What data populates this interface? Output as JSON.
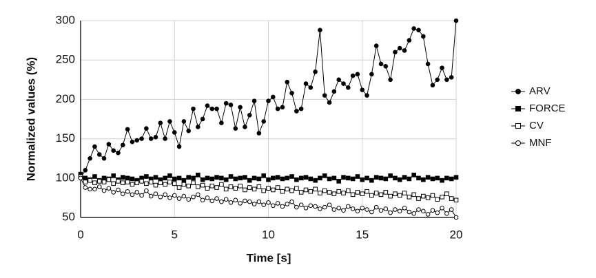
{
  "chart_data": {
    "type": "line",
    "xlabel": "Time [s]",
    "ylabel": "Normalized values (%)",
    "x": [
      0,
      0.25,
      0.5,
      0.75,
      1,
      1.25,
      1.5,
      1.75,
      2,
      2.25,
      2.5,
      2.75,
      3,
      3.25,
      3.5,
      3.75,
      4,
      4.25,
      4.5,
      4.75,
      5,
      5.25,
      5.5,
      5.75,
      6,
      6.25,
      6.5,
      6.75,
      7,
      7.25,
      7.5,
      7.75,
      8,
      8.25,
      8.5,
      8.75,
      9,
      9.25,
      9.5,
      9.75,
      10,
      10.25,
      10.5,
      10.75,
      11,
      11.25,
      11.5,
      11.75,
      12,
      12.25,
      12.5,
      12.75,
      13,
      13.25,
      13.5,
      13.75,
      14,
      14.25,
      14.5,
      14.75,
      15,
      15.25,
      15.5,
      15.75,
      16,
      16.25,
      16.5,
      16.75,
      17,
      17.25,
      17.5,
      17.75,
      18,
      18.25,
      18.5,
      18.75,
      19,
      19.25,
      19.5,
      19.75,
      20
    ],
    "series": [
      {
        "name": "ARV",
        "color": "#000000",
        "marker": "filled-circle",
        "values": [
          100,
          110,
          125,
          140,
          130,
          125,
          143,
          135,
          132,
          142,
          162,
          146,
          148,
          150,
          163,
          150,
          152,
          170,
          150,
          172,
          158,
          140,
          172,
          160,
          188,
          165,
          175,
          192,
          188,
          188,
          170,
          195,
          193,
          163,
          190,
          165,
          180,
          198,
          157,
          172,
          198,
          203,
          188,
          190,
          222,
          208,
          185,
          188,
          220,
          215,
          235,
          288,
          205,
          196,
          210,
          225,
          220,
          215,
          230,
          232,
          212,
          205,
          232,
          268,
          245,
          242,
          225,
          260,
          265,
          262,
          275,
          290,
          288,
          280,
          245,
          218,
          225,
          240,
          225,
          228,
          300
        ]
      },
      {
        "name": "FORCE",
        "color": "#000000",
        "marker": "filled-square",
        "values": [
          105,
          100,
          98,
          102,
          97,
          100,
          99,
          103,
          98,
          101,
          100,
          99,
          97,
          100,
          102,
          99,
          101,
          98,
          100,
          103,
          99,
          100,
          97,
          101,
          100,
          104,
          98,
          100,
          99,
          101,
          100,
          98,
          102,
          99,
          100,
          101,
          97,
          100,
          99,
          103,
          98,
          100,
          101,
          99,
          100,
          102,
          98,
          100,
          101,
          99,
          97,
          100,
          103,
          99,
          100,
          96,
          101,
          100,
          99,
          102,
          98,
          100,
          97,
          101,
          100,
          99,
          103,
          100,
          98,
          101,
          99,
          104,
          100,
          98,
          101,
          99,
          100,
          97,
          100,
          99,
          101
        ]
      },
      {
        "name": "CV",
        "color": "#000000",
        "marker": "open-square",
        "values": [
          102,
          95,
          97,
          94,
          96,
          95,
          98,
          93,
          96,
          94,
          95,
          92,
          94,
          96,
          93,
          95,
          91,
          94,
          92,
          95,
          93,
          88,
          92,
          90,
          94,
          89,
          91,
          87,
          90,
          88,
          92,
          86,
          89,
          87,
          90,
          85,
          88,
          86,
          89,
          84,
          87,
          85,
          88,
          83,
          86,
          84,
          87,
          82,
          85,
          83,
          86,
          81,
          84,
          82,
          80,
          83,
          81,
          84,
          79,
          82,
          80,
          83,
          78,
          81,
          79,
          82,
          77,
          80,
          78,
          81,
          76,
          79,
          74,
          77,
          75,
          78,
          73,
          76,
          80,
          74,
          72
        ]
      },
      {
        "name": "MNF",
        "color": "#000000",
        "marker": "open-circle",
        "values": [
          100,
          88,
          86,
          86,
          89,
          84,
          87,
          82,
          85,
          80,
          83,
          79,
          82,
          78,
          84,
          77,
          80,
          76,
          79,
          75,
          78,
          74,
          77,
          73,
          76,
          79,
          72,
          75,
          71,
          74,
          70,
          73,
          69,
          72,
          68,
          71,
          70,
          67,
          70,
          66,
          69,
          65,
          68,
          64,
          67,
          70,
          63,
          66,
          62,
          65,
          64,
          61,
          63,
          66,
          60,
          62,
          59,
          64,
          61,
          58,
          62,
          60,
          57,
          63,
          59,
          61,
          56,
          60,
          58,
          62,
          57,
          55,
          60,
          58,
          54,
          59,
          56,
          62,
          55,
          60,
          50
        ]
      }
    ],
    "xlim": [
      0,
      20
    ],
    "xticks": [
      0,
      5,
      10,
      15,
      20
    ],
    "ylim": [
      50,
      300
    ],
    "yticks": [
      50,
      100,
      150,
      200,
      250,
      300
    ],
    "grid": true,
    "legend": "right"
  }
}
